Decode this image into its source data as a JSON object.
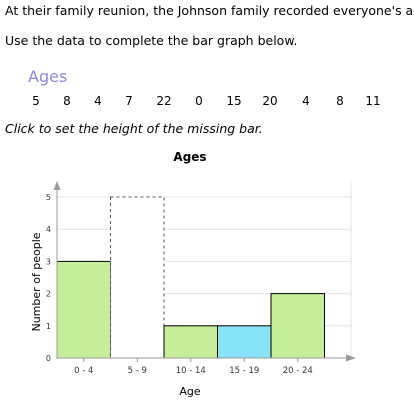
{
  "intro_text": "At their family reunion, the Johnson family recorded everyone's age.",
  "instruction_text": "Use the data to complete the bar graph below.",
  "ages_title": "Ages",
  "ages": [
    "5",
    "8",
    "4",
    "7",
    "22",
    "0",
    "15",
    "20",
    "4",
    "8",
    "11"
  ],
  "hint_text": "Click to set the height of the missing bar.",
  "colors": {
    "bar_fill": "#c6ee9a",
    "bar_selected": "#88e2f8",
    "axis": "#999999",
    "ages_title": "#8a8ae6"
  },
  "chart_data": {
    "type": "bar",
    "title": "Ages",
    "xlabel": "Age",
    "ylabel": "Number of people",
    "categories": [
      "0 - 4",
      "5 - 9",
      "10 - 14",
      "15 - 19",
      "20 - 24"
    ],
    "values": [
      3,
      null,
      1,
      1,
      2
    ],
    "missing_index": 1,
    "missing_max": 5,
    "selected_index": 3,
    "yticks": [
      "0",
      "1",
      "2",
      "3",
      "4",
      "5"
    ],
    "ylim": [
      0,
      5.5
    ],
    "grid": true
  }
}
